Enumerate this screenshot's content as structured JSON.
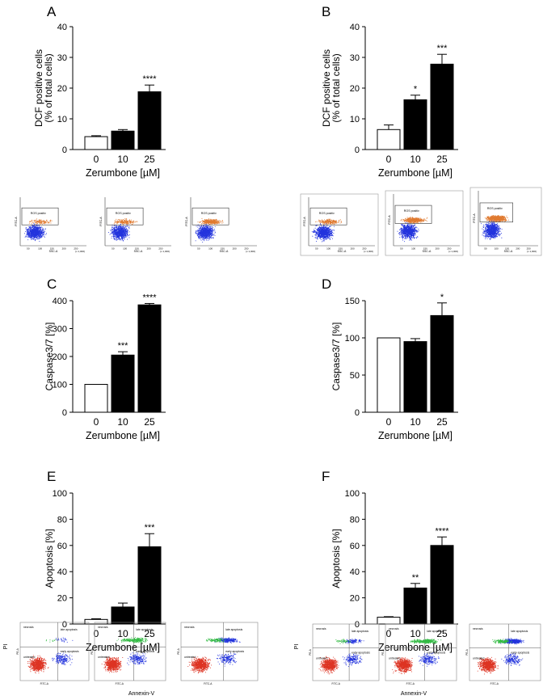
{
  "x_axis_label": "Zerumbone [µM]",
  "categories": [
    "0",
    "10",
    "25"
  ],
  "colors": {
    "control_bar": "#ffffff",
    "treated_bar": "#000000",
    "axis": "#000000",
    "dot_blue": "#2233dd",
    "dot_red": "#dd3322",
    "dot_green": "#33bb44",
    "dot_orange": "#e07a30"
  },
  "chart_data": [
    {
      "panel": "A",
      "type": "bar",
      "ylabel": [
        "DCF positive cells",
        "(% of total cells)"
      ],
      "xlabel": "Zerumbone [µM]",
      "categories": [
        "0",
        "10",
        "25"
      ],
      "values": [
        4.2,
        6.0,
        18.8
      ],
      "errors": [
        0.3,
        0.5,
        2.2
      ],
      "significance": [
        "",
        "",
        "****"
      ],
      "ylim": [
        0,
        40
      ],
      "yticks": [
        0,
        10,
        20,
        30,
        40
      ]
    },
    {
      "panel": "B",
      "type": "bar",
      "ylabel": [
        "DCF positive cells",
        "(% of total cells)"
      ],
      "xlabel": "Zerumbone [µM]",
      "categories": [
        "0",
        "10",
        "25"
      ],
      "values": [
        6.5,
        16.2,
        27.8
      ],
      "errors": [
        1.5,
        1.5,
        3.2
      ],
      "significance": [
        "",
        "*",
        "***"
      ],
      "ylim": [
        0,
        40
      ],
      "yticks": [
        0,
        10,
        20,
        30,
        40
      ]
    },
    {
      "panel": "C",
      "type": "bar",
      "ylabel": [
        "Caspase3/7 [%]"
      ],
      "xlabel": "Zerumbone [µM]",
      "categories": [
        "0",
        "10",
        "25"
      ],
      "values": [
        100,
        205,
        385
      ],
      "errors": [
        0,
        12,
        5
      ],
      "significance": [
        "",
        "***",
        "****"
      ],
      "ylim": [
        0,
        400
      ],
      "yticks": [
        0,
        100,
        200,
        300,
        400
      ]
    },
    {
      "panel": "D",
      "type": "bar",
      "ylabel": [
        "Caspase3/7 [%]"
      ],
      "xlabel": "Zerumbone [µM]",
      "categories": [
        "0",
        "10",
        "25"
      ],
      "values": [
        100,
        95,
        130
      ],
      "errors": [
        0,
        4,
        17
      ],
      "significance": [
        "",
        "",
        "*"
      ],
      "ylim": [
        0,
        150
      ],
      "yticks": [
        0,
        50,
        100,
        150
      ]
    },
    {
      "panel": "E",
      "type": "bar",
      "ylabel": [
        "Apoptosis [%]"
      ],
      "xlabel": "Zerumbone [µM]",
      "categories": [
        "0",
        "10",
        "25"
      ],
      "values": [
        3.5,
        13.0,
        59.0
      ],
      "errors": [
        0.5,
        3.0,
        10.0
      ],
      "significance": [
        "",
        "",
        "***"
      ],
      "ylim": [
        0,
        100
      ],
      "yticks": [
        0,
        20,
        40,
        60,
        80,
        100
      ]
    },
    {
      "panel": "F",
      "type": "bar",
      "ylabel": [
        "Apoptosis [%]"
      ],
      "xlabel": "Zerumbone [µM]",
      "categories": [
        "0",
        "10",
        "25"
      ],
      "values": [
        5.2,
        27.5,
        60.0
      ],
      "errors": [
        0.4,
        3.5,
        6.5
      ],
      "significance": [
        "",
        "**",
        "****"
      ],
      "ylim": [
        0,
        100
      ],
      "yticks": [
        0,
        20,
        40,
        60,
        80,
        100
      ]
    }
  ],
  "ros_flow": {
    "gate_label": "ROS positiv",
    "y_axis": "FITC-A",
    "x_axis": "SSC-A",
    "x_scale": "(x 1,000)",
    "ticks": [
      "50",
      "100",
      "150",
      "200",
      "250"
    ],
    "red_density": [
      0.15,
      0.25,
      0.4,
      0.3,
      0.6,
      0.9
    ]
  },
  "annexin_flow": {
    "y_axis": "PI",
    "x_axis": "Annexin-V",
    "inner_y": "PE-A",
    "inner_x": "FITC-A",
    "quadrants": {
      "necrosis": "necrosis",
      "late": "late apoptosis",
      "early": "early apoptosis",
      "untreated": "untreated"
    },
    "late_density": [
      0.05,
      0.4,
      0.6,
      0.25,
      0.55,
      0.9
    ]
  }
}
